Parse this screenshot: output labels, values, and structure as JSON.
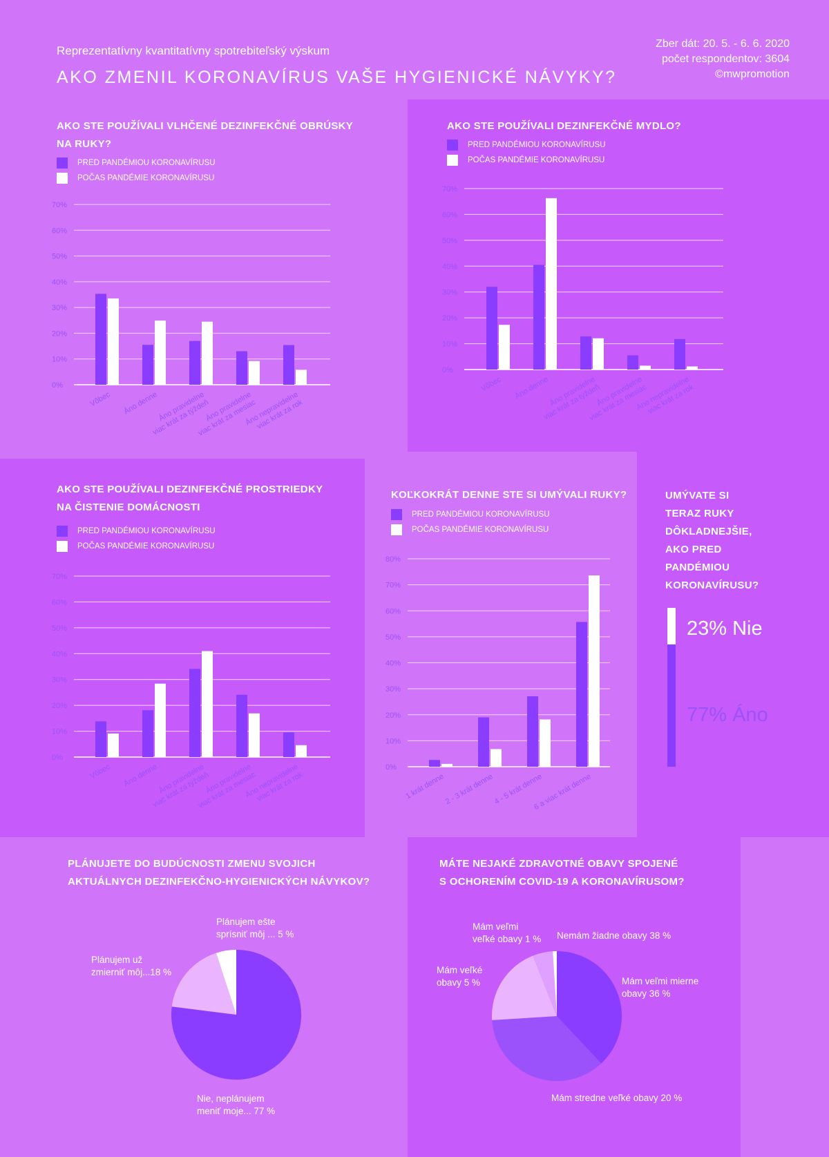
{
  "header": {
    "subtitle": "Reprezentatívny kvantitatívny spotrebiteľský výskum",
    "title": "AKO ZMENIL KORONAVÍRUS VAŠE HYGIENICKÉ NÁVYKY?",
    "meta": [
      "Zber dát: 20. 5. - 6. 6. 2020",
      "počet respondentov: 3604",
      "©mwpromotion"
    ]
  },
  "legend": {
    "before": "PRED PANDÉMIOU KORONAVÍRUSU",
    "during": "POČAS PANDÉMIE KORONAVÍRUSU"
  },
  "colors": {
    "before": "#8a3cff",
    "during": "#ffffff",
    "gridline": "#f0d6ff",
    "axis_text": "#9b52fb",
    "pie_dark": "#8a3cff",
    "pie_mid": "#9b52fb",
    "pie_light": "#eab4ff",
    "pie_lighter": "#e0a0ff",
    "pie_white": "#ffffff"
  },
  "chart_data": [
    {
      "id": "wipes",
      "type": "bar",
      "title_lines": [
        "AKO STE POUŽÍVALI VLHČENÉ DEZINFEKČNÉ OBRÚSKY",
        "NA RUKY?"
      ],
      "categories": [
        [
          "Vôbec"
        ],
        [
          "Áno denne"
        ],
        [
          "Áno pravidelne",
          "viac krát za týždeň"
        ],
        [
          "Áno pravidelne",
          "viac krát za mesiac"
        ],
        [
          "Áno nepravidelne",
          "viac krát za rok"
        ]
      ],
      "ylim": [
        0,
        70
      ],
      "yticks": [
        0,
        10,
        20,
        30,
        40,
        50,
        60,
        70
      ],
      "tick_labels": [
        "0%",
        "10%",
        "20%",
        "30%",
        "40%",
        "50%",
        "60%",
        "70%"
      ],
      "series": [
        {
          "name": "PRED PANDÉMIOU KORONAVÍRUSU",
          "values": [
            35.3,
            15.5,
            17,
            13,
            15.4
          ]
        },
        {
          "name": "POČAS PANDÉMIE KORONAVÍRUSU",
          "values": [
            33.5,
            24.9,
            24.5,
            9.2,
            5.8
          ]
        }
      ]
    },
    {
      "id": "soap",
      "type": "bar",
      "title_lines": [
        "AKO STE POUŽÍVALI DEZINFEKČNÉ MYDLO?"
      ],
      "categories": [
        [
          "Vôbec"
        ],
        [
          "Áno denne"
        ],
        [
          "Áno pravidelne",
          "viac krát za týždeň"
        ],
        [
          "Áno pravidelne",
          "viac krát za mesiac"
        ],
        [
          "Áno nepravidelne",
          "viac krát za rok"
        ]
      ],
      "ylim": [
        0,
        70
      ],
      "yticks": [
        0,
        10,
        20,
        30,
        40,
        50,
        60,
        70
      ],
      "tick_labels": [
        "0%",
        "10%",
        "20%",
        "30%",
        "40%",
        "50%",
        "60%",
        "70%"
      ],
      "series": [
        {
          "name": "PRED PANDÉMIOU KORONAVÍRUSU",
          "values": [
            32,
            40.5,
            12.8,
            5.5,
            11.8
          ]
        },
        {
          "name": "POČAS PANDÉMIE KORONAVÍRUSU",
          "values": [
            17.3,
            66.3,
            12.1,
            1.5,
            1.2
          ]
        }
      ]
    },
    {
      "id": "household",
      "type": "bar",
      "title_lines": [
        "AKO STE POUŽÍVALI DEZINFEKČNÉ PROSTRIEDKY",
        "NA ČISTENIE DOMÁCNOSTI"
      ],
      "categories": [
        [
          "Vôbec"
        ],
        [
          "Áno denne"
        ],
        [
          "Áno pravidelne",
          "viac krát za týždeň"
        ],
        [
          "Áno pravidelne",
          "viac krát za mesiac"
        ],
        [
          "Áno nepravidelne",
          "viac krát za rok"
        ]
      ],
      "ylim": [
        0,
        70
      ],
      "yticks": [
        0,
        10,
        20,
        30,
        40,
        50,
        60,
        70
      ],
      "tick_labels": [
        "0%",
        "10%",
        "20%",
        "30%",
        "40%",
        "50%",
        "60%",
        "70%"
      ],
      "series": [
        {
          "name": "PRED PANDÉMIOU KORONAVÍRUSU",
          "values": [
            13.8,
            18.1,
            34.1,
            24.1,
            9.5
          ]
        },
        {
          "name": "POČAS PANDÉMIE KORONAVÍRUSU",
          "values": [
            9.1,
            28.4,
            41,
            16.9,
            4.6
          ]
        }
      ]
    },
    {
      "id": "handwash",
      "type": "bar",
      "title_lines": [
        "KOĽKOKRÁT DENNE STE SI UMÝVALI RUKY?"
      ],
      "categories": [
        [
          "1 krát denne"
        ],
        [
          "2 - 3 krát denne"
        ],
        [
          "4 - 5 krát denne"
        ],
        [
          "6 a viac krát denne"
        ]
      ],
      "ylim": [
        0,
        80
      ],
      "yticks": [
        0,
        10,
        20,
        30,
        40,
        50,
        60,
        70,
        80
      ],
      "tick_labels": [
        "0%",
        "10%",
        "20%",
        "30%",
        "40%",
        "50%",
        "60%",
        "70%",
        "80%"
      ],
      "series": [
        {
          "name": "PRED PANDÉMIOU KORONAVÍRUSU",
          "values": [
            2.6,
            19,
            27.1,
            55.7
          ]
        },
        {
          "name": "POČAS PANDÉMIE KORONAVÍRUSU",
          "values": [
            1.1,
            6.8,
            18.2,
            73.6
          ]
        }
      ]
    },
    {
      "id": "thorough",
      "type": "bar",
      "stacked": true,
      "title_lines": [
        "UMÝVATE SI",
        "TERAZ RUKY",
        "DÔKLADNEJŠIE,",
        "AKO PRED",
        "PANDÉMIOU",
        "KORONAVÍRUSU?"
      ],
      "series": [
        {
          "name": "Áno",
          "value": 77,
          "label": "77% Áno",
          "color": "#8a3cff"
        },
        {
          "name": "Nie",
          "value": 23,
          "label": "23% Nie",
          "color": "#ffffff"
        }
      ]
    },
    {
      "id": "future",
      "type": "pie",
      "title_lines": [
        "PLÁNUJETE DO BUDÚCNOSTI ZMENU SVOJICH",
        "AKTUÁLNYCH DEZINFEKČNO-HYGIENICKÝCH NÁVYKOV?"
      ],
      "slices": [
        {
          "label_lines": [
            "Nie, neplánujem",
            "meniť moje... 77 %"
          ],
          "value": 77,
          "color": "#8a3cff"
        },
        {
          "label_lines": [
            "Plánujem už",
            "zmierniť môj...18 %"
          ],
          "value": 18,
          "color": "#eab4ff"
        },
        {
          "label_lines": [
            "Plánujem ešte",
            "sprísniť môj ... 5 %"
          ],
          "value": 5,
          "color": "#ffffff"
        }
      ]
    },
    {
      "id": "concerns",
      "type": "pie",
      "title_lines": [
        "MÁTE NEJAKÉ ZDRAVOTNÉ OBAVY SPOJENÉ",
        "S OCHORENÍM COVID-19 A KORONAVÍRUSOM?"
      ],
      "slices": [
        {
          "label_lines": [
            "Nemám žiadne obavy 38 %"
          ],
          "value": 38,
          "color": "#8a3cff"
        },
        {
          "label_lines": [
            "Mám veľmi mierne",
            "obavy 36 %"
          ],
          "value": 36,
          "color": "#9b52fb"
        },
        {
          "label_lines": [
            "Mám stredne veľké obavy 20 %"
          ],
          "value": 20,
          "color": "#eab4ff"
        },
        {
          "label_lines": [
            "Mám veľké",
            "obavy 5 %"
          ],
          "value": 5,
          "color": "#e0a0ff"
        },
        {
          "label_lines": [
            "Mám veľmi",
            "veľké obavy 1 %"
          ],
          "value": 1,
          "color": "#ffffff"
        }
      ]
    }
  ]
}
